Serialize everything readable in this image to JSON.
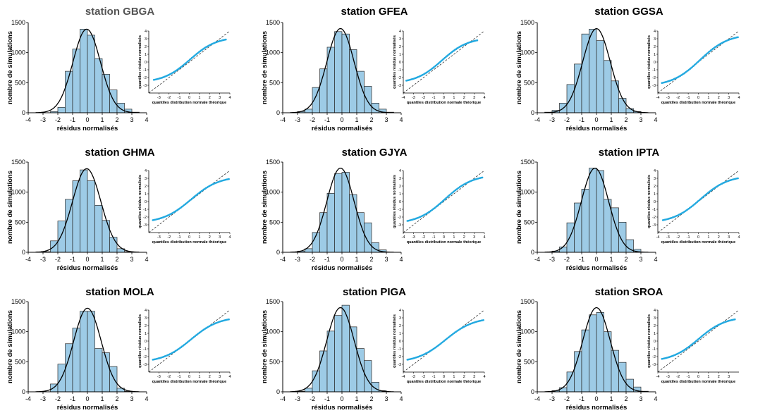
{
  "figure": {
    "hist_xlabel": "résidus normalisés",
    "hist_ylabel": "nombre de simulations",
    "qq_xlabel": "quantiles distribution normale théorique",
    "qq_ylabel": "quantiles résidus normalisés",
    "colors": {
      "bar_fill": "#9dcbe6",
      "bar_edge": "#2b2b2b",
      "qq_points": "#22a9e0",
      "ref_line": "#333333",
      "axis": "#000000"
    }
  },
  "chart_data": [
    {
      "station": "station GBGA",
      "title_color": "#555555",
      "histogram": {
        "type": "bar",
        "bin_edges": [
          -2.5,
          -2,
          -1.5,
          -1,
          -0.5,
          0,
          0.5,
          1,
          1.5,
          2,
          2.5,
          3,
          3.5
        ],
        "values": [
          20,
          90,
          690,
          1060,
          1390,
          1290,
          900,
          640,
          380,
          160,
          60,
          10
        ],
        "xlim": [
          -4,
          4
        ],
        "ylim": [
          0,
          1500
        ],
        "xticks": [
          -4,
          -3,
          -2,
          -1,
          0,
          1,
          2,
          3,
          4
        ],
        "yticks": [
          0,
          500,
          1000,
          1500
        ],
        "normal_fit": {
          "mean": -0.05,
          "sd": 0.93,
          "peak": 1390
        }
      },
      "qqplot": {
        "type": "scatter",
        "xlim": [
          -4,
          4
        ],
        "ylim": [
          -4,
          4
        ],
        "xticks": [
          -3,
          -2,
          -1,
          0,
          1,
          2,
          3,
          4
        ],
        "yticks": [
          -3,
          -2,
          -1,
          0,
          1,
          2,
          3,
          4
        ],
        "x_range": [
          -3.5,
          3.6
        ],
        "y_range": [
          -2.3,
          2.9
        ]
      }
    },
    {
      "station": "station GFEA",
      "title_color": "#000000",
      "histogram": {
        "type": "bar",
        "bin_edges": [
          -3,
          -2.5,
          -2,
          -1.5,
          -1,
          -0.5,
          0,
          0.5,
          1,
          1.5,
          2,
          2.5,
          3,
          3.5
        ],
        "values": [
          20,
          60,
          420,
          730,
          1090,
          1350,
          1310,
          1050,
          690,
          440,
          160,
          60,
          10
        ],
        "xlim": [
          -4,
          4
        ],
        "ylim": [
          0,
          1500
        ],
        "xticks": [
          -4,
          -3,
          -2,
          -1,
          0,
          1,
          2,
          3,
          4
        ],
        "yticks": [
          0,
          500,
          1000,
          1500
        ],
        "normal_fit": {
          "mean": -0.1,
          "sd": 0.92,
          "peak": 1400
        }
      },
      "qqplot": {
        "type": "scatter",
        "xlim": [
          -4,
          4
        ],
        "ylim": [
          -4,
          4
        ],
        "xticks": [
          -4,
          -3,
          -2,
          -1,
          0,
          1,
          2,
          3,
          4
        ],
        "yticks": [
          -3,
          -2,
          -1,
          0,
          1,
          2,
          3,
          4
        ],
        "x_range": [
          -3.7,
          3.3
        ],
        "y_range": [
          -2.4,
          2.8
        ]
      }
    },
    {
      "station": "station GGSA",
      "title_color": "#000000",
      "histogram": {
        "type": "bar",
        "bin_edges": [
          -3.5,
          -3,
          -2.5,
          -2,
          -1.5,
          -1,
          -0.5,
          0,
          0.5,
          1,
          1.5,
          2,
          2.5,
          3
        ],
        "values": [
          10,
          40,
          160,
          470,
          810,
          1310,
          1390,
          1200,
          870,
          530,
          240,
          70,
          20
        ],
        "xlim": [
          -4,
          4
        ],
        "ylim": [
          0,
          1500
        ],
        "xticks": [
          -4,
          -3,
          -2,
          -1,
          0,
          1,
          2,
          3,
          4
        ],
        "yticks": [
          0,
          500,
          1000,
          1500
        ],
        "normal_fit": {
          "mean": 0,
          "sd": 0.93,
          "peak": 1400
        }
      },
      "qqplot": {
        "type": "scatter",
        "xlim": [
          -4,
          4
        ],
        "ylim": [
          -4,
          4
        ],
        "xticks": [
          -4,
          -3,
          -2,
          -1,
          0,
          1,
          2,
          3,
          4
        ],
        "yticks": [
          -3,
          -2,
          -1,
          0,
          1,
          2,
          3,
          4
        ],
        "x_range": [
          -3.6,
          3.9
        ],
        "y_range": [
          -2.7,
          3.2
        ]
      }
    },
    {
      "station": "station GHMA",
      "title_color": "#000000",
      "histogram": {
        "type": "bar",
        "bin_edges": [
          -3,
          -2.5,
          -2,
          -1.5,
          -1,
          -0.5,
          0,
          0.5,
          1,
          1.5,
          2,
          2.5,
          3
        ],
        "values": [
          10,
          190,
          520,
          880,
          1190,
          1370,
          1190,
          780,
          530,
          250,
          60,
          10
        ],
        "xlim": [
          -4,
          4
        ],
        "ylim": [
          0,
          1500
        ],
        "xticks": [
          -4,
          -3,
          -2,
          -1,
          0,
          1,
          2,
          3,
          4
        ],
        "yticks": [
          0,
          500,
          1000,
          1500
        ],
        "normal_fit": {
          "mean": -0.05,
          "sd": 0.96,
          "peak": 1390
        }
      },
      "qqplot": {
        "type": "scatter",
        "xlim": [
          -4,
          4
        ],
        "ylim": [
          -4,
          4
        ],
        "xticks": [
          -3,
          -2,
          -1,
          0,
          1,
          2,
          3,
          4
        ],
        "yticks": [
          -3,
          -2,
          -1,
          0,
          1,
          2,
          3,
          4
        ],
        "x_range": [
          -3.6,
          3.9
        ],
        "y_range": [
          -2.4,
          2.9
        ]
      }
    },
    {
      "station": "station GJYA",
      "title_color": "#000000",
      "histogram": {
        "type": "bar",
        "bin_edges": [
          -3,
          -2.5,
          -2,
          -1.5,
          -1,
          -0.5,
          0,
          0.5,
          1,
          1.5,
          2,
          2.5,
          3
        ],
        "values": [
          20,
          60,
          330,
          660,
          980,
          1310,
          1330,
          960,
          660,
          490,
          160,
          40
        ],
        "xlim": [
          -4,
          4
        ],
        "ylim": [
          0,
          1500
        ],
        "xticks": [
          -4,
          -3,
          -2,
          -1,
          0,
          1,
          2,
          3,
          4
        ],
        "yticks": [
          0,
          500,
          1000,
          1500
        ],
        "normal_fit": {
          "mean": -0.1,
          "sd": 0.92,
          "peak": 1400
        }
      },
      "qqplot": {
        "type": "scatter",
        "xlim": [
          -4,
          4
        ],
        "ylim": [
          -4,
          4
        ],
        "xticks": [
          -4,
          -3,
          -2,
          -1,
          0,
          1,
          2,
          3,
          4
        ],
        "yticks": [
          -3,
          -2,
          -1,
          0,
          1,
          2,
          3,
          4
        ],
        "x_range": [
          -3.6,
          3.8
        ],
        "y_range": [
          -2.5,
          3.1
        ]
      }
    },
    {
      "station": "station IPTA",
      "title_color": "#000000",
      "histogram": {
        "type": "bar",
        "bin_edges": [
          -3,
          -2.5,
          -2,
          -1.5,
          -1,
          -0.5,
          0,
          0.5,
          1,
          1.5,
          2,
          2.5,
          3
        ],
        "values": [
          20,
          90,
          490,
          820,
          1050,
          1400,
          1360,
          880,
          740,
          500,
          210,
          50
        ],
        "xlim": [
          -4,
          4
        ],
        "ylim": [
          0,
          1500
        ],
        "xticks": [
          -4,
          -3,
          -2,
          -1,
          0,
          1,
          2,
          3,
          4
        ],
        "yticks": [
          0,
          500,
          1000,
          1500
        ],
        "normal_fit": {
          "mean": -0.1,
          "sd": 0.92,
          "peak": 1400
        }
      },
      "qqplot": {
        "type": "scatter",
        "xlim": [
          -4,
          4
        ],
        "ylim": [
          -4,
          4
        ],
        "xticks": [
          -4,
          -3,
          -2,
          -1,
          0,
          1,
          2,
          3,
          4
        ],
        "yticks": [
          -3,
          -2,
          -1,
          0,
          1,
          2,
          3,
          4
        ],
        "x_range": [
          -3.5,
          3.9
        ],
        "y_range": [
          -2.4,
          3.0
        ]
      }
    },
    {
      "station": "station MOLA",
      "title_color": "#000000",
      "histogram": {
        "type": "bar",
        "bin_edges": [
          -2.5,
          -2,
          -1.5,
          -1,
          -0.5,
          0,
          0.5,
          1,
          1.5,
          2,
          2.5,
          3
        ],
        "values": [
          130,
          460,
          800,
          1060,
          1340,
          1340,
          720,
          650,
          420,
          60,
          10
        ],
        "xlim": [
          -4,
          4
        ],
        "ylim": [
          0,
          1500
        ],
        "xticks": [
          -4,
          -3,
          -2,
          -1,
          0,
          1,
          2,
          3,
          4
        ],
        "yticks": [
          0,
          500,
          1000,
          1500
        ],
        "normal_fit": {
          "mean": 0,
          "sd": 0.93,
          "peak": 1390
        }
      },
      "qqplot": {
        "type": "scatter",
        "xlim": [
          -4,
          4
        ],
        "ylim": [
          -4,
          4
        ],
        "xticks": [
          -3,
          -2,
          -1,
          0,
          1,
          2,
          3,
          4
        ],
        "yticks": [
          -3,
          -2,
          -1,
          0,
          1,
          2,
          3,
          4
        ],
        "x_range": [
          -3.6,
          3.9
        ],
        "y_range": [
          -2.4,
          2.8
        ]
      }
    },
    {
      "station": "station PIGA",
      "title_color": "#000000",
      "histogram": {
        "type": "bar",
        "bin_edges": [
          -3,
          -2.5,
          -2,
          -1.5,
          -1,
          -0.5,
          0,
          0.5,
          1,
          1.5,
          2,
          2.5,
          3
        ],
        "values": [
          10,
          60,
          350,
          680,
          1010,
          1270,
          1440,
          1080,
          720,
          520,
          160,
          20
        ],
        "xlim": [
          -4,
          4
        ],
        "ylim": [
          0,
          1500
        ],
        "xticks": [
          -4,
          -3,
          -2,
          -1,
          0,
          1,
          2,
          3,
          4
        ],
        "yticks": [
          0,
          500,
          1000,
          1500
        ],
        "normal_fit": {
          "mean": -0.1,
          "sd": 0.93,
          "peak": 1400
        }
      },
      "qqplot": {
        "type": "scatter",
        "xlim": [
          -4,
          4
        ],
        "ylim": [
          -4,
          4
        ],
        "xticks": [
          -4,
          -3,
          -2,
          -1,
          0,
          1,
          2,
          3,
          4
        ],
        "yticks": [
          -3,
          -2,
          -1,
          0,
          1,
          2,
          3,
          4
        ],
        "x_range": [
          -3.6,
          3.9
        ],
        "y_range": [
          -2.4,
          2.7
        ]
      }
    },
    {
      "station": "station SROA",
      "title_color": "#000000",
      "histogram": {
        "type": "bar",
        "bin_edges": [
          -3,
          -2.5,
          -2,
          -1.5,
          -1,
          -0.5,
          0,
          0.5,
          1,
          1.5,
          2,
          2.5,
          3,
          3.5
        ],
        "values": [
          20,
          70,
          330,
          670,
          1030,
          1280,
          1320,
          1000,
          690,
          490,
          210,
          80,
          10
        ],
        "xlim": [
          -4,
          4
        ],
        "ylim": [
          0,
          1500
        ],
        "xticks": [
          -4,
          -3,
          -2,
          -1,
          0,
          1,
          2,
          3,
          4
        ],
        "yticks": [
          0,
          500,
          1000,
          1500
        ],
        "normal_fit": {
          "mean": 0,
          "sd": 0.93,
          "peak": 1400
        }
      },
      "qqplot": {
        "type": "scatter",
        "xlim": [
          -4,
          4
        ],
        "ylim": [
          -4,
          4
        ],
        "xticks": [
          -4,
          -3,
          -2,
          -1,
          0,
          1,
          2,
          3
        ],
        "yticks": [
          -3,
          -2,
          -1,
          0,
          1,
          2,
          3,
          4
        ],
        "x_range": [
          -3.6,
          3.6
        ],
        "y_range": [
          -2.3,
          2.8
        ]
      }
    }
  ]
}
